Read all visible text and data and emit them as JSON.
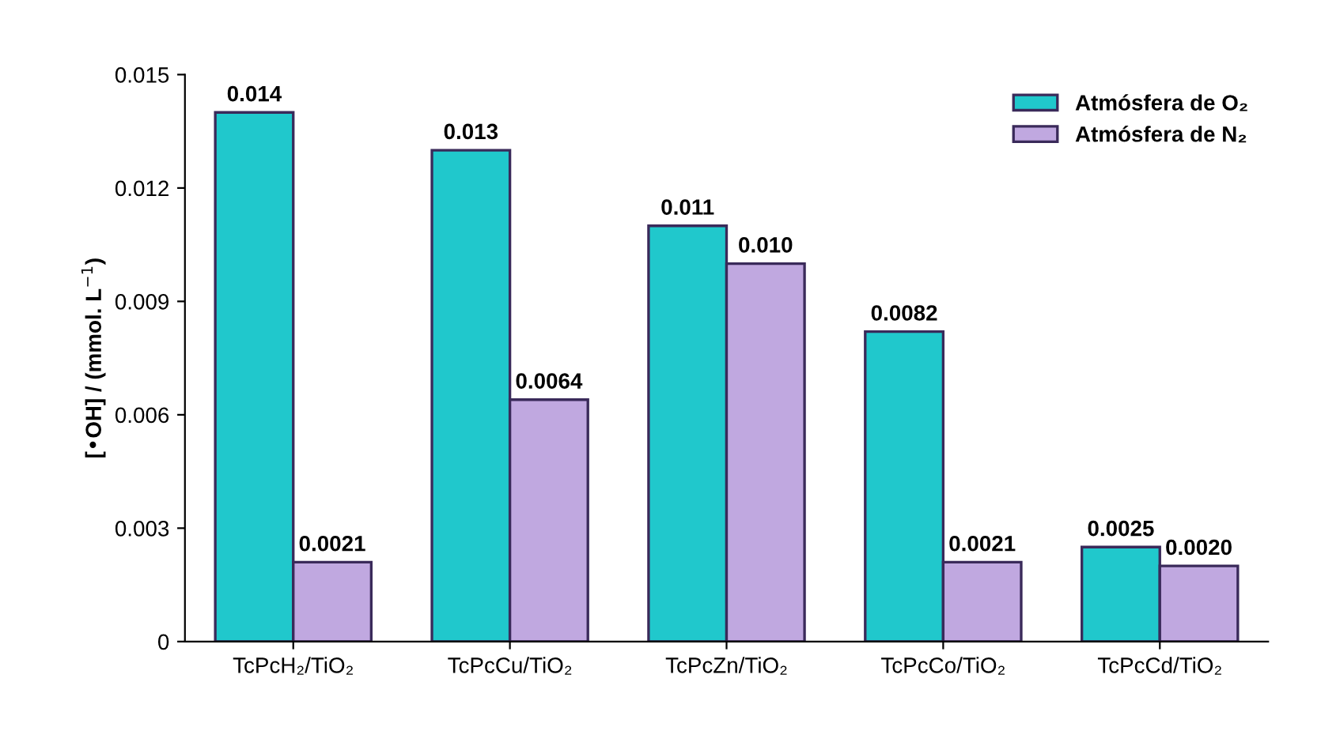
{
  "chart_data": {
    "type": "bar",
    "ylabel": "[•OH] / (mmol. L$^{−1}$)",
    "categories": [
      "TcPcH₂/TiO₂",
      "TcPcCu/TiO₂",
      "TcPcZn/TiO₂",
      "TcPcCo/TiO₂",
      "TcPcCd/TiO₂"
    ],
    "series": [
      {
        "name": "Atmósfera de O₂",
        "color": "#20c8cc",
        "values": [
          0.014,
          0.013,
          0.011,
          0.0082,
          0.0025
        ],
        "value_labels": [
          "0.014",
          "0.013",
          "0.011",
          "0.0082",
          "0.0025"
        ]
      },
      {
        "name": "Atmósfera de N₂",
        "color": "#c0a8e0",
        "values": [
          0.0021,
          0.0064,
          0.01,
          0.0021,
          0.002
        ],
        "value_labels": [
          "0.0021",
          "0.0064",
          "0.010",
          "0.0021",
          "0.0020"
        ]
      }
    ],
    "ylim": [
      0,
      0.015
    ],
    "yticks": [
      0,
      0.003,
      0.006,
      0.009,
      0.012,
      0.015
    ],
    "legend": "top right",
    "grid": false
  }
}
